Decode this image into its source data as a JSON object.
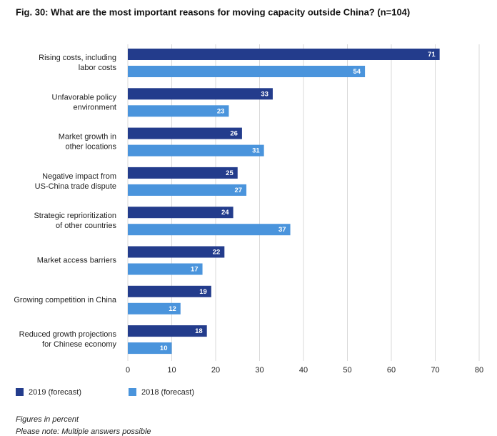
{
  "chart_data": {
    "type": "bar",
    "orientation": "horizontal",
    "title": "Fig. 30: What are the most important reasons for moving capacity outside China? (n=104)",
    "categories": [
      "Rising costs, including\nlabor costs",
      "Unfavorable policy\nenvironment",
      "Market growth in\nother locations",
      "Negative impact from\nUS-China trade dispute",
      "Strategic reprioritization\nof other countries",
      "Market access barriers",
      "Growing competition in China",
      "Reduced growth projections\nfor Chinese economy"
    ],
    "series": [
      {
        "name": "2019 (forecast)",
        "color": "#233c8c",
        "values": [
          71,
          33,
          26,
          25,
          24,
          22,
          19,
          18
        ]
      },
      {
        "name": "2018 (forecast)",
        "color": "#4a94dc",
        "values": [
          54,
          23,
          31,
          27,
          37,
          17,
          12,
          10
        ]
      }
    ],
    "xlim": [
      0,
      80
    ],
    "xticks": [
      0,
      10,
      20,
      30,
      40,
      50,
      60,
      70,
      80
    ],
    "grid": true,
    "notes": [
      "Figures in percent",
      "Please note: Multiple answers possible"
    ]
  }
}
